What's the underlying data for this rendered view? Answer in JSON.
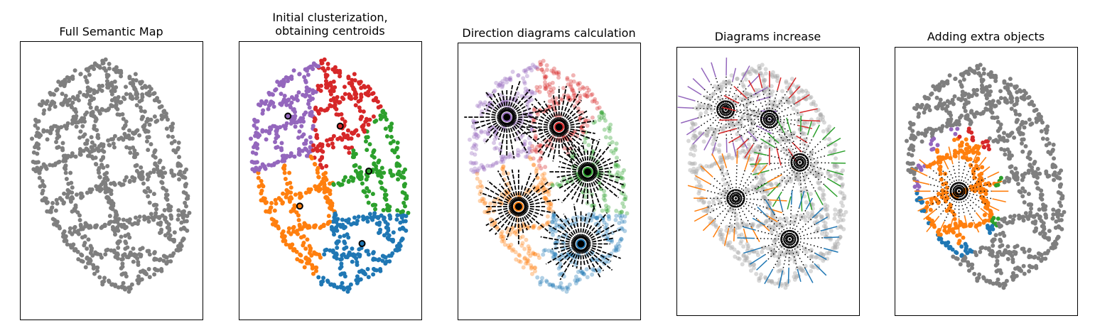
{
  "panels": [
    {
      "title": "Full Semantic Map"
    },
    {
      "title": "Initial clusterization,\nobtaining centroids"
    },
    {
      "title": "Direction diagrams calculation"
    },
    {
      "title": "Diagrams increase"
    },
    {
      "title": "Adding extra objects"
    }
  ],
  "colors": {
    "gray": "#7f7f7f",
    "purple": "#9467bd",
    "red": "#d62728",
    "green": "#2ca02c",
    "orange": "#ff7f0e",
    "blue": "#1f77b4",
    "centroid_marker": "#000000"
  },
  "clusters": [
    "purple",
    "red",
    "green",
    "orange",
    "blue"
  ]
}
